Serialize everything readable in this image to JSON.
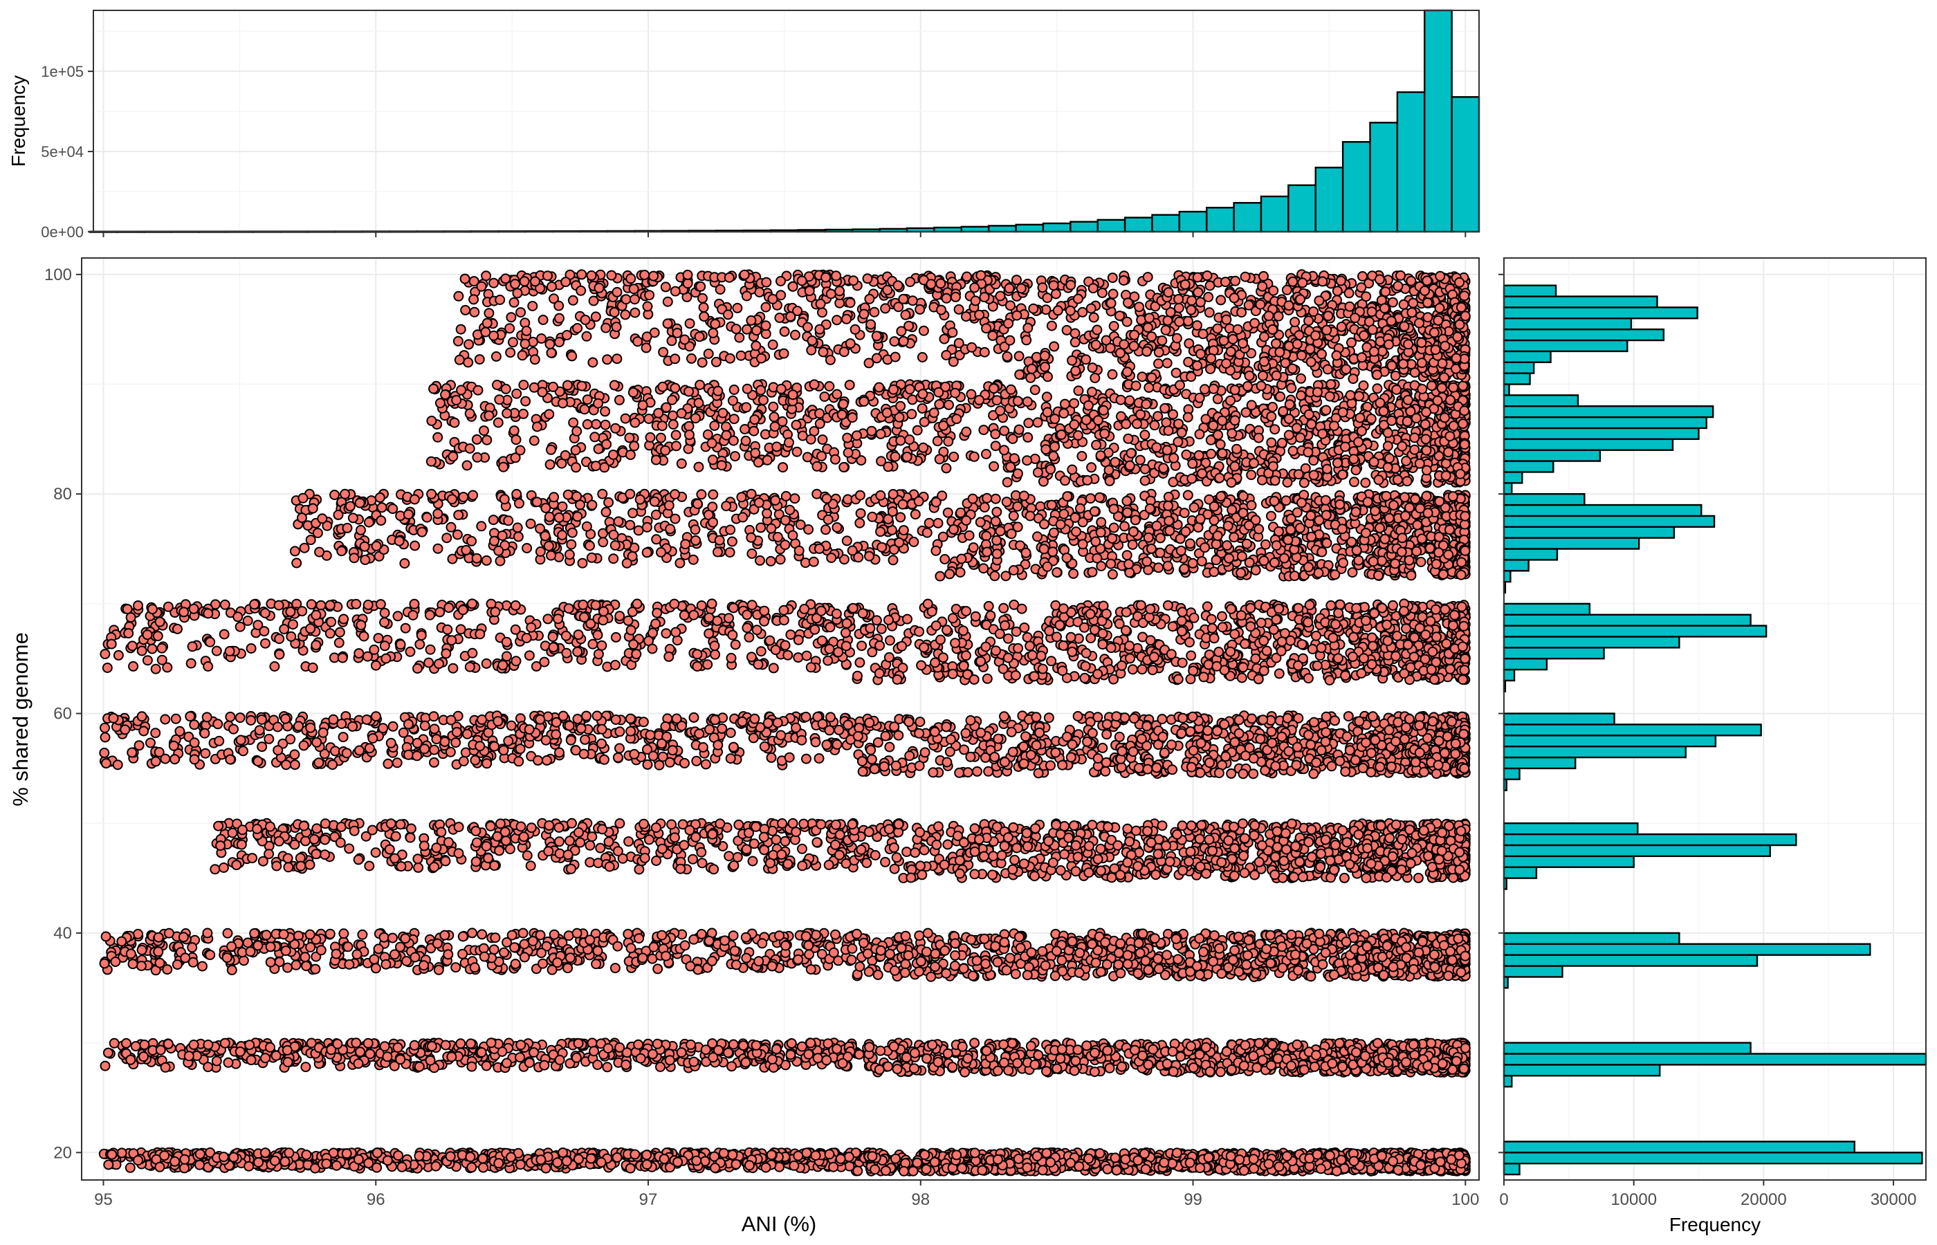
{
  "chart_data": [
    {
      "type": "bar",
      "panel": "top-marginal",
      "title": "",
      "xlabel": "",
      "ylabel": "Frequency",
      "xlim": [
        94.92,
        100.05
      ],
      "ylim": [
        0,
        138000
      ],
      "yticks": [
        0,
        50000,
        100000
      ],
      "ytick_labels": [
        "0e+00",
        "5e+04",
        "1e+05"
      ],
      "bins": [
        {
          "x": 95.0,
          "value": 100
        },
        {
          "x": 95.1,
          "value": 100
        },
        {
          "x": 95.2,
          "value": 110
        },
        {
          "x": 95.3,
          "value": 120
        },
        {
          "x": 95.4,
          "value": 130
        },
        {
          "x": 95.5,
          "value": 140
        },
        {
          "x": 95.6,
          "value": 150
        },
        {
          "x": 95.7,
          "value": 160
        },
        {
          "x": 95.8,
          "value": 170
        },
        {
          "x": 95.9,
          "value": 180
        },
        {
          "x": 96.0,
          "value": 200
        },
        {
          "x": 96.1,
          "value": 210
        },
        {
          "x": 96.2,
          "value": 230
        },
        {
          "x": 96.3,
          "value": 250
        },
        {
          "x": 96.4,
          "value": 280
        },
        {
          "x": 96.5,
          "value": 300
        },
        {
          "x": 96.6,
          "value": 330
        },
        {
          "x": 96.7,
          "value": 360
        },
        {
          "x": 96.8,
          "value": 400
        },
        {
          "x": 96.9,
          "value": 450
        },
        {
          "x": 97.0,
          "value": 500
        },
        {
          "x": 97.1,
          "value": 560
        },
        {
          "x": 97.2,
          "value": 630
        },
        {
          "x": 97.3,
          "value": 700
        },
        {
          "x": 97.4,
          "value": 800
        },
        {
          "x": 97.5,
          "value": 950
        },
        {
          "x": 97.6,
          "value": 1100
        },
        {
          "x": 97.7,
          "value": 1300
        },
        {
          "x": 97.8,
          "value": 1500
        },
        {
          "x": 97.9,
          "value": 1800
        },
        {
          "x": 98.0,
          "value": 2200
        },
        {
          "x": 98.1,
          "value": 2600
        },
        {
          "x": 98.2,
          "value": 3100
        },
        {
          "x": 98.3,
          "value": 3700
        },
        {
          "x": 98.4,
          "value": 4400
        },
        {
          "x": 98.5,
          "value": 5200
        },
        {
          "x": 98.6,
          "value": 6200
        },
        {
          "x": 98.7,
          "value": 7400
        },
        {
          "x": 98.8,
          "value": 8800
        },
        {
          "x": 98.9,
          "value": 10500
        },
        {
          "x": 99.0,
          "value": 12500
        },
        {
          "x": 99.1,
          "value": 15000
        },
        {
          "x": 99.2,
          "value": 18000
        },
        {
          "x": 99.3,
          "value": 22000
        },
        {
          "x": 99.4,
          "value": 29000
        },
        {
          "x": 99.5,
          "value": 40000
        },
        {
          "x": 99.6,
          "value": 56000
        },
        {
          "x": 99.7,
          "value": 68000
        },
        {
          "x": 99.8,
          "value": 87000
        },
        {
          "x": 99.9,
          "value": 138000
        },
        {
          "x": 100.0,
          "value": 84000
        }
      ],
      "bar_color": "#00bfc4"
    },
    {
      "type": "scatter",
      "panel": "main",
      "title": "",
      "xlabel": "ANI (%)",
      "ylabel": "% shared genome",
      "xlim": [
        94.92,
        100.05
      ],
      "ylim": [
        17.5,
        101.5
      ],
      "xticks": [
        95,
        96,
        97,
        98,
        99,
        100
      ],
      "yticks": [
        20,
        40,
        60,
        80,
        100
      ],
      "grid": true,
      "point_color": "#f8766d",
      "bands": [
        {
          "y_range": [
            18.3,
            20.0
          ],
          "ani_range": [
            95.0,
            100.0
          ],
          "density": "very high"
        },
        {
          "y_range": [
            27.3,
            30.0
          ],
          "ani_range": [
            95.0,
            100.0
          ],
          "density": "high"
        },
        {
          "y_range": [
            36.0,
            40.0
          ],
          "ani_range": [
            95.0,
            100.0
          ],
          "density": "high"
        },
        {
          "y_range": [
            45.0,
            50.0
          ],
          "ani_range": [
            95.4,
            100.0
          ],
          "density": "high"
        },
        {
          "y_range": [
            54.5,
            59.8
          ],
          "ani_range": [
            95.0,
            100.0
          ],
          "density": "high"
        },
        {
          "y_range": [
            63.0,
            70.0
          ],
          "ani_range": [
            95.0,
            100.0
          ],
          "density": "high"
        },
        {
          "y_range": [
            72.5,
            80.0
          ],
          "ani_range": [
            95.7,
            100.0
          ],
          "density": "high"
        },
        {
          "y_range": [
            81.0,
            90.0
          ],
          "ani_range": [
            96.2,
            100.0
          ],
          "density": "high"
        },
        {
          "y_range": [
            90.5,
            100.0
          ],
          "ani_range": [
            96.3,
            100.0
          ],
          "density": "high"
        }
      ]
    },
    {
      "type": "bar",
      "orientation": "horizontal",
      "panel": "right-marginal",
      "title": "",
      "xlabel": "Frequency",
      "ylabel": "",
      "xlim": [
        0,
        32500
      ],
      "xticks": [
        0,
        10000,
        20000,
        30000
      ],
      "xtick_labels": [
        "0",
        "10000",
        "20000",
        "30000"
      ],
      "bins": [
        {
          "y": 18.5,
          "value": 1200
        },
        {
          "y": 19.5,
          "value": 32200
        },
        {
          "y": 20.5,
          "value": 27000
        },
        {
          "y": 26.5,
          "value": 600
        },
        {
          "y": 27.5,
          "value": 12000
        },
        {
          "y": 28.5,
          "value": 32500
        },
        {
          "y": 29.5,
          "value": 19000
        },
        {
          "y": 35.5,
          "value": 300
        },
        {
          "y": 36.5,
          "value": 4500
        },
        {
          "y": 37.5,
          "value": 19500
        },
        {
          "y": 38.5,
          "value": 28200
        },
        {
          "y": 39.5,
          "value": 13500
        },
        {
          "y": 44.5,
          "value": 200
        },
        {
          "y": 45.5,
          "value": 2500
        },
        {
          "y": 46.5,
          "value": 10000
        },
        {
          "y": 47.5,
          "value": 20500
        },
        {
          "y": 48.5,
          "value": 22500
        },
        {
          "y": 49.5,
          "value": 10300
        },
        {
          "y": 53.5,
          "value": 200
        },
        {
          "y": 54.5,
          "value": 1200
        },
        {
          "y": 55.5,
          "value": 5500
        },
        {
          "y": 56.5,
          "value": 14000
        },
        {
          "y": 57.5,
          "value": 16300
        },
        {
          "y": 58.5,
          "value": 19800
        },
        {
          "y": 59.5,
          "value": 8500
        },
        {
          "y": 62.5,
          "value": 100
        },
        {
          "y": 63.5,
          "value": 800
        },
        {
          "y": 64.5,
          "value": 3300
        },
        {
          "y": 65.5,
          "value": 7700
        },
        {
          "y": 66.5,
          "value": 13500
        },
        {
          "y": 67.5,
          "value": 20200
        },
        {
          "y": 68.5,
          "value": 19000
        },
        {
          "y": 69.5,
          "value": 6600
        },
        {
          "y": 71.5,
          "value": 100
        },
        {
          "y": 72.5,
          "value": 500
        },
        {
          "y": 73.5,
          "value": 1900
        },
        {
          "y": 74.5,
          "value": 4100
        },
        {
          "y": 75.5,
          "value": 10400
        },
        {
          "y": 76.5,
          "value": 13100
        },
        {
          "y": 77.5,
          "value": 16200
        },
        {
          "y": 78.5,
          "value": 15200
        },
        {
          "y": 79.5,
          "value": 6200
        },
        {
          "y": 80.5,
          "value": 600
        },
        {
          "y": 81.5,
          "value": 1400
        },
        {
          "y": 82.5,
          "value": 3800
        },
        {
          "y": 83.5,
          "value": 7400
        },
        {
          "y": 84.5,
          "value": 13000
        },
        {
          "y": 85.5,
          "value": 15000
        },
        {
          "y": 86.5,
          "value": 15600
        },
        {
          "y": 87.5,
          "value": 16100
        },
        {
          "y": 88.5,
          "value": 5700
        },
        {
          "y": 89.5,
          "value": 400
        },
        {
          "y": 90.5,
          "value": 2000
        },
        {
          "y": 91.5,
          "value": 2300
        },
        {
          "y": 92.5,
          "value": 3600
        },
        {
          "y": 93.5,
          "value": 9500
        },
        {
          "y": 94.5,
          "value": 12300
        },
        {
          "y": 95.5,
          "value": 9800
        },
        {
          "y": 96.5,
          "value": 14900
        },
        {
          "y": 97.5,
          "value": 11800
        },
        {
          "y": 98.5,
          "value": 4000
        }
      ],
      "bar_color": "#00bfc4"
    }
  ],
  "labels": {
    "top_ylabel": "Frequency",
    "main_xlabel": "ANI (%)",
    "main_ylabel": "% shared genome",
    "right_xlabel": "Frequency"
  }
}
